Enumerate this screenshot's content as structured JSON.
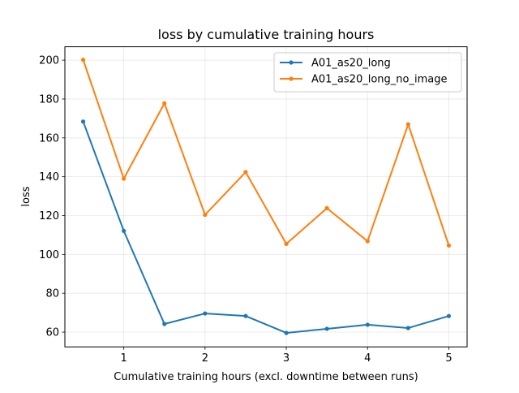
{
  "chart_data": {
    "type": "line",
    "title": "loss by cumulative training hours",
    "xlabel": "Cumulative training hours (excl. downtime between runs)",
    "ylabel": "loss",
    "xlim": [
      0.275,
      5.225
    ],
    "ylim": [
      52.4,
      206.9
    ],
    "xticks": [
      1,
      2,
      3,
      4,
      5
    ],
    "yticks": [
      60,
      80,
      100,
      120,
      140,
      160,
      180,
      200
    ],
    "grid": true,
    "legend_position": "top-right",
    "x": [
      0.5,
      1,
      1.5,
      2,
      2.5,
      3,
      3.5,
      4,
      4.5,
      5
    ],
    "series": [
      {
        "name": "A01_as20_long",
        "color": "#1f77b4",
        "values": [
          168.4,
          112.1,
          64.2,
          69.6,
          68.3,
          59.6,
          61.7,
          63.8,
          62.1,
          68.3
        ]
      },
      {
        "name": "A01_as20_long_no_image",
        "color": "#ff7f0e",
        "values": [
          200.2,
          139.0,
          177.8,
          120.4,
          142.4,
          105.4,
          123.8,
          106.8,
          167.0,
          104.6
        ]
      }
    ]
  }
}
